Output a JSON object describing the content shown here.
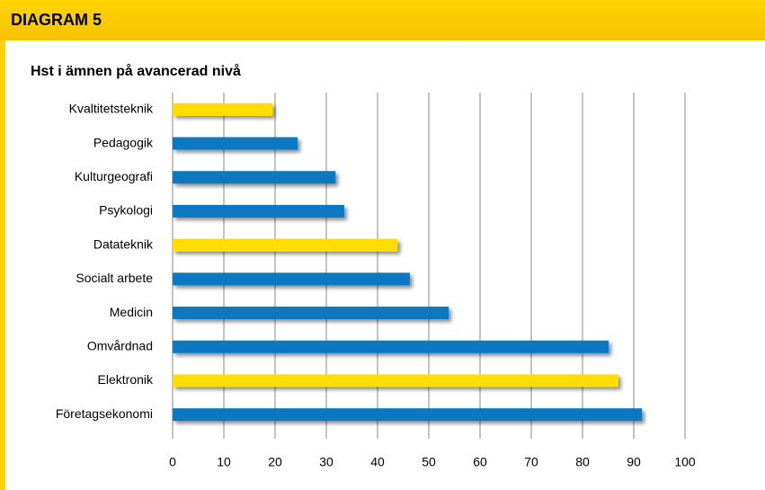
{
  "header": {
    "title": "DIAGRAM 5"
  },
  "chart_data": {
    "type": "bar",
    "orientation": "horizontal",
    "title": "Hst i ämnen på avancerad nivå",
    "categories": [
      "Kvaltitetsteknik",
      "Pedagogik",
      "Kulturgeografi",
      "Psykologi",
      "Datateknik",
      "Socialt arbete",
      "Medicin",
      "Omvårdnad",
      "Elektronik",
      "Företagsekonomi"
    ],
    "values": [
      19.5,
      24.4,
      31.8,
      33.5,
      43.9,
      46.3,
      53.9,
      85.1,
      87,
      91.6
    ],
    "colors": [
      "#ffdd00",
      "#0a78c2",
      "#0a78c2",
      "#0a78c2",
      "#ffdd00",
      "#0a78c2",
      "#0a78c2",
      "#0a78c2",
      "#ffdd00",
      "#0a78c2"
    ],
    "xlim": [
      0,
      100
    ],
    "xticks": [
      0,
      10,
      20,
      30,
      40,
      50,
      60,
      70,
      80,
      90,
      100
    ],
    "grid": true
  }
}
